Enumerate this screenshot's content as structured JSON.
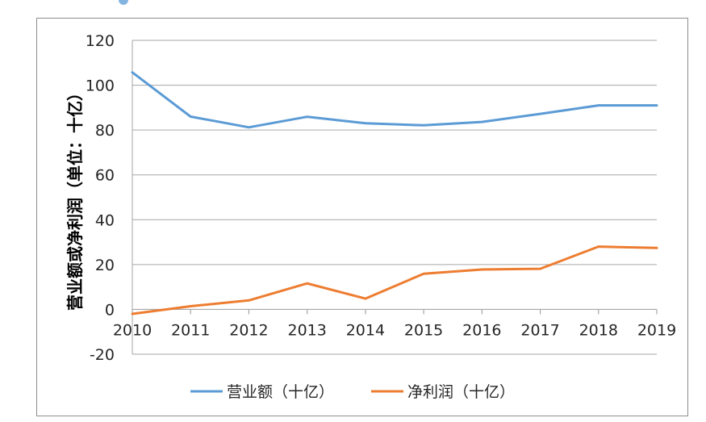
{
  "chart_data": {
    "type": "line",
    "title": "",
    "xlabel": "",
    "ylabel": "营业额或净利润（单位：十亿）",
    "x": [
      "2010",
      "2011",
      "2012",
      "2013",
      "2014",
      "2015",
      "2016",
      "2017",
      "2018",
      "2019"
    ],
    "ylim": [
      -20,
      120
    ],
    "yticks": [
      "-20",
      "0",
      "20",
      "40",
      "60",
      "80",
      "100",
      "120"
    ],
    "grid": true,
    "legend_position": "bottom",
    "series": [
      {
        "name": "营业额（十亿）",
        "color": "#5b9bd5",
        "values": [
          105.7,
          86.0,
          81.2,
          85.9,
          83.0,
          82.1,
          83.6,
          87.2,
          91.0,
          91.0
        ]
      },
      {
        "name": "净利润（十亿）",
        "color": "#ed7d31",
        "values": [
          -2.0,
          1.4,
          4.0,
          11.6,
          4.8,
          15.9,
          17.8,
          18.1,
          28.0,
          27.4
        ]
      }
    ]
  }
}
